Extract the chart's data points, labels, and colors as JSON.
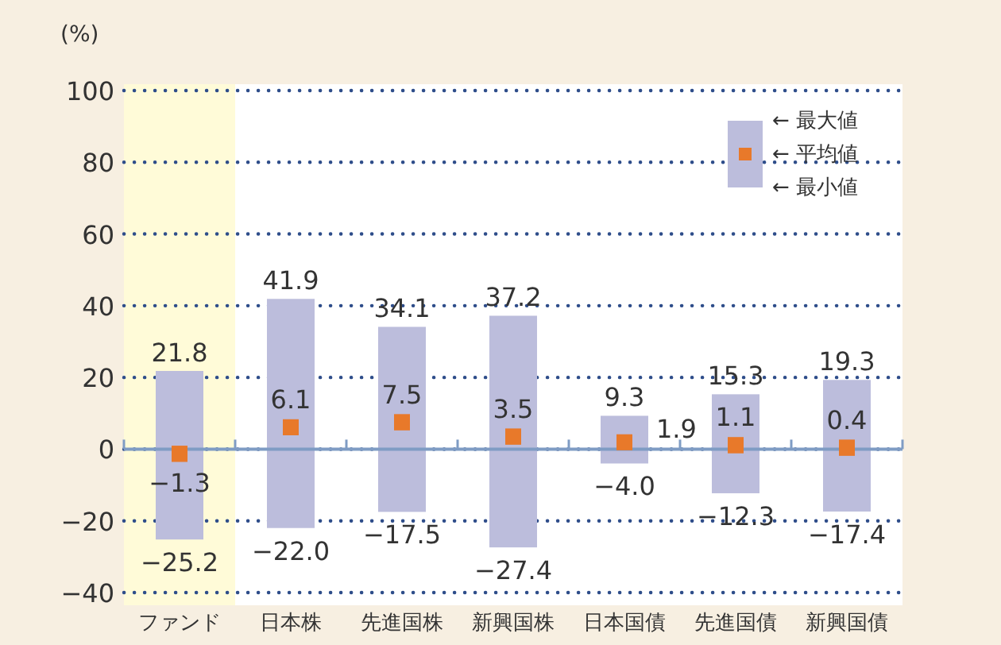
{
  "chart_data": {
    "type": "bar",
    "ylabel": "(%)",
    "categories": [
      "ファンド",
      "日本株",
      "先進国株",
      "新興国株",
      "日本国債",
      "先進国債",
      "新興国債"
    ],
    "series": [
      {
        "color": "#bcbddc",
        "base": [
          -25.2,
          -22.0,
          -17.5,
          -27.4,
          -4.0,
          -12.3,
          -17.4
        ],
        "values": [
          47.0,
          63.9,
          51.6,
          64.6,
          13.3,
          27.6,
          36.7
        ]
      },
      {
        "type": "scatter",
        "color": "#e8792a",
        "marker": "square",
        "values": [
          -1.3,
          6.1,
          7.5,
          3.5,
          1.9,
          1.1,
          0.4
        ],
        "value_labels": [
          "−1.3",
          "6.1",
          "7.5",
          "3.5",
          "1.9",
          "1.1",
          "0.4"
        ]
      }
    ],
    "annotations": [
      {
        "text": "21.8",
        "x": "ファンド",
        "y": 21.8
      },
      {
        "text": "41.9",
        "x": "日本株",
        "y": 41.9
      },
      {
        "text": "34.1",
        "x": "先進国株",
        "y": 34.1
      },
      {
        "text": "37.2",
        "x": "新興国株",
        "y": 37.2
      },
      {
        "text": "9.3",
        "x": "日本国債",
        "y": 9.3
      },
      {
        "text": "15.3",
        "x": "先進国債",
        "y": 15.3
      },
      {
        "text": "19.3",
        "x": "新興国債",
        "y": 19.3
      },
      {
        "text": "−25.2",
        "x": "ファンド",
        "y": -25.2
      },
      {
        "text": "−22.0",
        "x": "日本株",
        "y": -22.0
      },
      {
        "text": "−17.5",
        "x": "先進国株",
        "y": -17.5
      },
      {
        "text": "−27.4",
        "x": "新興国株",
        "y": -27.4
      },
      {
        "text": "−4.0",
        "x": "日本国債",
        "y": -4.0
      },
      {
        "text": "−12.3",
        "x": "先進国債",
        "y": -12.3
      },
      {
        "text": "−17.4",
        "x": "新興国債",
        "y": -17.4
      },
      "← 最大値",
      "← 平均値",
      "← 最小値"
    ],
    "ylim": [
      -40,
      100
    ],
    "yticks": [
      -40,
      -20,
      0,
      20,
      40,
      60,
      80,
      100
    ],
    "grid": "y",
    "ref_lines": [
      {
        "axis": "y",
        "value": 0,
        "color": "#7f9cc4"
      }
    ],
    "bands": [
      {
        "axis": "x",
        "from": "ファンド",
        "to": "ファンド",
        "color": "#fffbd8"
      }
    ]
  }
}
